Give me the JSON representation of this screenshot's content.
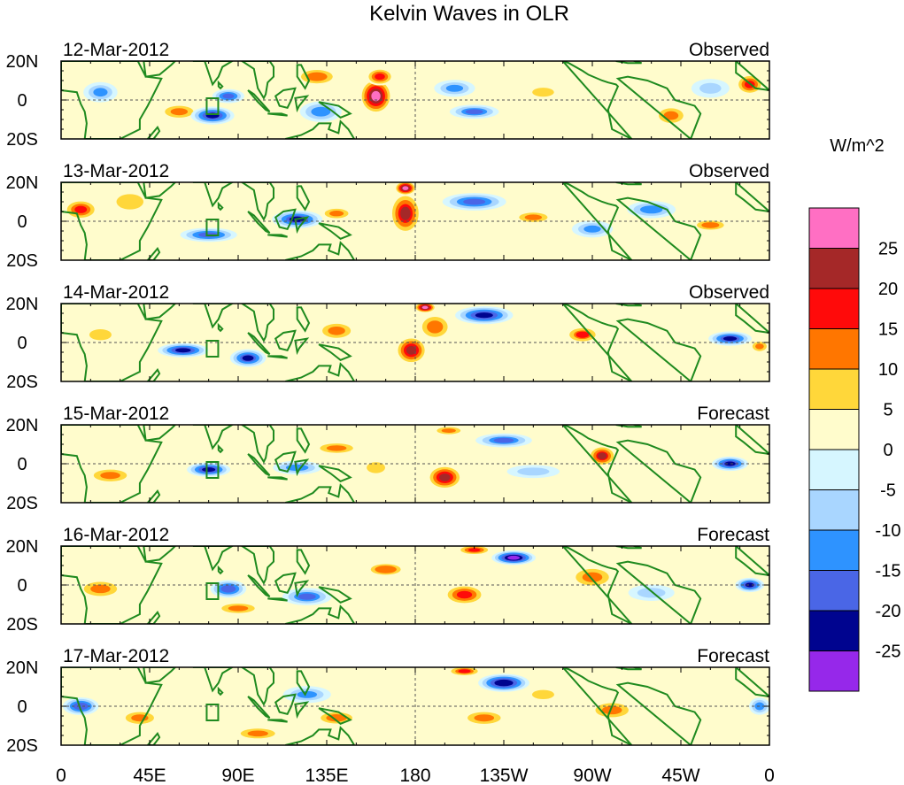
{
  "chart_data": {
    "type": "heatmap",
    "title": "Kelvin Waves in OLR",
    "unit_label": "W/m^2",
    "colors": {
      "coast": "#1f8a1f",
      "line": "#000000",
      "bins": [
        "#ff6fc3",
        "#a52828",
        "#ff0a0a",
        "#ff7600",
        "#ffd73a",
        "#fffccc",
        "#d6f6ff",
        "#a9d6ff",
        "#2e93ff",
        "#4a66e6",
        "#00048f",
        "#9628ea"
      ]
    },
    "colorbar": {
      "ticks": [
        "25",
        "20",
        "15",
        "10",
        "5",
        "0",
        "-5",
        "-10",
        "-15",
        "-20",
        "-25"
      ]
    },
    "lat_ticks": [
      "20N",
      "0",
      "20S"
    ],
    "lon_ticks": [
      "0",
      "45E",
      "90E",
      "135E",
      "180",
      "135W",
      "90W",
      "45W",
      "0"
    ],
    "lon_tick_values": [
      0,
      45,
      90,
      135,
      180,
      225,
      270,
      315,
      360
    ],
    "lat_range": [
      -20,
      20
    ],
    "lon_range": [
      0,
      360
    ],
    "panels": [
      {
        "date": "12-Mar-2012",
        "status": "Observed",
        "anomalies": [
          {
            "lon": 160,
            "lat": 2,
            "value": 27,
            "rx": 9,
            "ry": 10
          },
          {
            "lon": 162,
            "lat": 12,
            "value": 18,
            "rx": 8,
            "ry": 5
          },
          {
            "lon": 20,
            "lat": 4,
            "value": -12,
            "rx": 10,
            "ry": 6
          },
          {
            "lon": 60,
            "lat": -6,
            "value": 12,
            "rx": 12,
            "ry": 5
          },
          {
            "lon": 85,
            "lat": 2,
            "value": -18,
            "rx": 9,
            "ry": 4
          },
          {
            "lon": 77,
            "lat": -8,
            "value": -22,
            "rx": 12,
            "ry": 5
          },
          {
            "lon": 130,
            "lat": 12,
            "value": 11,
            "rx": 14,
            "ry": 6
          },
          {
            "lon": 132,
            "lat": -6,
            "value": -14,
            "rx": 12,
            "ry": 6
          },
          {
            "lon": 200,
            "lat": 6,
            "value": -12,
            "rx": 12,
            "ry": 5
          },
          {
            "lon": 210,
            "lat": -6,
            "value": -16,
            "rx": 14,
            "ry": 4
          },
          {
            "lon": 245,
            "lat": 4,
            "value": 7,
            "rx": 12,
            "ry": 5
          },
          {
            "lon": 310,
            "lat": -8,
            "value": 13,
            "rx": 10,
            "ry": 6
          },
          {
            "lon": 350,
            "lat": 8,
            "value": 18,
            "rx": 8,
            "ry": 6
          },
          {
            "lon": 330,
            "lat": 6,
            "value": -7,
            "rx": 12,
            "ry": 6
          }
        ]
      },
      {
        "date": "13-Mar-2012",
        "status": "Observed",
        "anomalies": [
          {
            "lon": 175,
            "lat": 4,
            "value": 21,
            "rx": 9,
            "ry": 12
          },
          {
            "lon": 175,
            "lat": 17,
            "value": 27,
            "rx": 6,
            "ry": 4
          },
          {
            "lon": 10,
            "lat": 6,
            "value": 17,
            "rx": 10,
            "ry": 6
          },
          {
            "lon": 35,
            "lat": 10,
            "value": 6,
            "rx": 14,
            "ry": 8
          },
          {
            "lon": 75,
            "lat": -7,
            "value": -18,
            "rx": 16,
            "ry": 4
          },
          {
            "lon": 120,
            "lat": 1,
            "value": -21,
            "rx": 14,
            "ry": 5
          },
          {
            "lon": 140,
            "lat": 4,
            "value": 12,
            "rx": 10,
            "ry": 4
          },
          {
            "lon": 210,
            "lat": 10,
            "value": -17,
            "rx": 18,
            "ry": 5
          },
          {
            "lon": 240,
            "lat": 2,
            "value": 12,
            "rx": 12,
            "ry": 4
          },
          {
            "lon": 270,
            "lat": -4,
            "value": -12,
            "rx": 12,
            "ry": 5
          },
          {
            "lon": 300,
            "lat": 6,
            "value": -14,
            "rx": 14,
            "ry": 5
          },
          {
            "lon": 330,
            "lat": -2,
            "value": 11,
            "rx": 12,
            "ry": 4
          }
        ]
      },
      {
        "date": "14-Mar-2012",
        "status": "Observed",
        "anomalies": [
          {
            "lon": 178,
            "lat": -4,
            "value": 22,
            "rx": 9,
            "ry": 8
          },
          {
            "lon": 190,
            "lat": 8,
            "value": 14,
            "rx": 10,
            "ry": 8
          },
          {
            "lon": 185,
            "lat": 18,
            "value": 27,
            "rx": 6,
            "ry": 3
          },
          {
            "lon": 62,
            "lat": -4,
            "value": -22,
            "rx": 14,
            "ry": 4
          },
          {
            "lon": 95,
            "lat": -8,
            "value": -21,
            "rx": 10,
            "ry": 5
          },
          {
            "lon": 140,
            "lat": 6,
            "value": 12,
            "rx": 12,
            "ry": 6
          },
          {
            "lon": 215,
            "lat": 14,
            "value": -22,
            "rx": 16,
            "ry": 5
          },
          {
            "lon": 265,
            "lat": 4,
            "value": 15,
            "rx": 10,
            "ry": 5
          },
          {
            "lon": 340,
            "lat": 2,
            "value": -21,
            "rx": 12,
            "ry": 4
          },
          {
            "lon": 20,
            "lat": 4,
            "value": 8,
            "rx": 12,
            "ry": 6
          },
          {
            "lon": 355,
            "lat": -2,
            "value": 12,
            "rx": 6,
            "ry": 4
          }
        ]
      },
      {
        "date": "15-Mar-2012",
        "status": "Forecast",
        "anomalies": [
          {
            "lon": 195,
            "lat": -7,
            "value": 22,
            "rx": 10,
            "ry": 7
          },
          {
            "lon": 197,
            "lat": 17,
            "value": 12,
            "rx": 10,
            "ry": 3
          },
          {
            "lon": 75,
            "lat": -3,
            "value": -22,
            "rx": 12,
            "ry": 4
          },
          {
            "lon": 120,
            "lat": -2,
            "value": -14,
            "rx": 14,
            "ry": 4
          },
          {
            "lon": 140,
            "lat": 8,
            "value": 12,
            "rx": 14,
            "ry": 4
          },
          {
            "lon": 225,
            "lat": 12,
            "value": -16,
            "rx": 16,
            "ry": 4
          },
          {
            "lon": 275,
            "lat": 4,
            "value": 20,
            "rx": 8,
            "ry": 6
          },
          {
            "lon": 340,
            "lat": 0,
            "value": -22,
            "rx": 10,
            "ry": 4
          },
          {
            "lon": 25,
            "lat": -6,
            "value": 12,
            "rx": 14,
            "ry": 5
          },
          {
            "lon": 240,
            "lat": -4,
            "value": -9,
            "rx": 16,
            "ry": 4
          },
          {
            "lon": 160,
            "lat": -2,
            "value": 8,
            "rx": 10,
            "ry": 6
          }
        ]
      },
      {
        "date": "16-Mar-2012",
        "status": "Forecast",
        "anomalies": [
          {
            "lon": 205,
            "lat": -5,
            "value": 18,
            "rx": 12,
            "ry": 6
          },
          {
            "lon": 210,
            "lat": 18,
            "value": 17,
            "rx": 10,
            "ry": 3
          },
          {
            "lon": 230,
            "lat": 14,
            "value": -27,
            "rx": 12,
            "ry": 4
          },
          {
            "lon": 85,
            "lat": -2,
            "value": -20,
            "rx": 10,
            "ry": 5
          },
          {
            "lon": 90,
            "lat": -12,
            "value": 12,
            "rx": 14,
            "ry": 4
          },
          {
            "lon": 125,
            "lat": -6,
            "value": -16,
            "rx": 14,
            "ry": 5
          },
          {
            "lon": 165,
            "lat": 8,
            "value": 10,
            "rx": 14,
            "ry": 5
          },
          {
            "lon": 270,
            "lat": 4,
            "value": 12,
            "rx": 14,
            "ry": 7
          },
          {
            "lon": 350,
            "lat": 0,
            "value": -22,
            "rx": 8,
            "ry": 4
          },
          {
            "lon": 20,
            "lat": -2,
            "value": 12,
            "rx": 14,
            "ry": 6
          },
          {
            "lon": 300,
            "lat": -4,
            "value": -9,
            "rx": 14,
            "ry": 5
          }
        ]
      },
      {
        "date": "17-Mar-2012",
        "status": "Forecast",
        "anomalies": [
          {
            "lon": 225,
            "lat": 12,
            "value": -25,
            "rx": 14,
            "ry": 5
          },
          {
            "lon": 205,
            "lat": 18,
            "value": 16,
            "rx": 10,
            "ry": 3
          },
          {
            "lon": 215,
            "lat": -6,
            "value": 12,
            "rx": 14,
            "ry": 5
          },
          {
            "lon": 100,
            "lat": -14,
            "value": 13,
            "rx": 14,
            "ry": 4
          },
          {
            "lon": 125,
            "lat": 6,
            "value": -12,
            "rx": 14,
            "ry": 5
          },
          {
            "lon": 140,
            "lat": -6,
            "value": 11,
            "rx": 14,
            "ry": 5
          },
          {
            "lon": 280,
            "lat": -2,
            "value": 12,
            "rx": 14,
            "ry": 6
          },
          {
            "lon": 10,
            "lat": 0,
            "value": -20,
            "rx": 10,
            "ry": 5
          },
          {
            "lon": 355,
            "lat": 0,
            "value": -14,
            "rx": 6,
            "ry": 5
          },
          {
            "lon": 40,
            "lat": -6,
            "value": 12,
            "rx": 12,
            "ry": 5
          },
          {
            "lon": 245,
            "lat": 6,
            "value": 8,
            "rx": 12,
            "ry": 5
          }
        ]
      }
    ]
  }
}
